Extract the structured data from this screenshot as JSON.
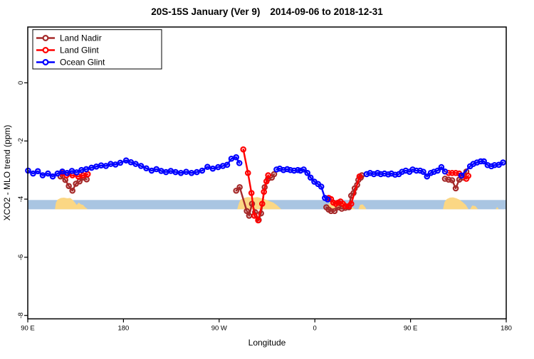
{
  "page": {
    "background": "#ffffff"
  },
  "chart_data": {
    "type": "line",
    "title": "20S-15S January (Ver 9)   2014-09-06 to 2018-12-31",
    "title_parts": [
      "20S-15S January (Ver 9)",
      "2014-09-06 to 2018-12-31"
    ],
    "xlabel": "Longitude",
    "ylabel": "XCO2 - MLO trend (ppm)",
    "marker": "open-circle",
    "x_axis": {
      "range_wrapped_deg": [
        90,
        540
      ],
      "ticks": [
        {
          "deg": 90,
          "label": "90 E"
        },
        {
          "deg": 180,
          "label": "180"
        },
        {
          "deg": 270,
          "label": "90 W"
        },
        {
          "deg": 360,
          "label": "0"
        },
        {
          "deg": 450,
          "label": "90 E"
        },
        {
          "deg": 540,
          "label": "180"
        }
      ]
    },
    "y_axis": {
      "range": [
        -8.1,
        1.9
      ],
      "ticks": [
        {
          "value": 0,
          "label": "0"
        },
        {
          "value": -2,
          "label": "-2"
        },
        {
          "value": -4,
          "label": "-4"
        },
        {
          "value": -6,
          "label": "-6"
        },
        {
          "value": -8,
          "label": "-8"
        }
      ]
    },
    "reference_band": {
      "top": -4.03,
      "bottom": -4.35,
      "color": "#a9c5e2"
    },
    "terrain": {
      "color": "#fbd784",
      "regions": [
        {
          "name": "australia",
          "points": [
            [
              115.5,
              -4.35
            ],
            [
              116.5,
              -4.12
            ],
            [
              118,
              -4.02
            ],
            [
              121,
              -3.96
            ],
            [
              124,
              -3.95
            ],
            [
              127,
              -3.97
            ],
            [
              130,
              -3.96
            ],
            [
              132,
              -4.02
            ],
            [
              134,
              -4.1
            ],
            [
              136,
              -4.2
            ],
            [
              138,
              -4.12
            ],
            [
              140,
              -4.18
            ],
            [
              142,
              -4.2
            ],
            [
              144,
              -4.28
            ],
            [
              146.5,
              -4.35
            ]
          ]
        },
        {
          "name": "south-america",
          "points": [
            [
              287,
              -4.35
            ],
            [
              288.5,
              -4.15
            ],
            [
              290,
              -4.02
            ],
            [
              293,
              -3.96
            ],
            [
              297,
              -3.93
            ],
            [
              302,
              -3.95
            ],
            [
              306,
              -3.93
            ],
            [
              310,
              -3.97
            ],
            [
              314,
              -4.02
            ],
            [
              318,
              -4.08
            ],
            [
              321,
              -4.12
            ],
            [
              324,
              -4.2
            ],
            [
              327,
              -4.3
            ],
            [
              328.5,
              -4.35
            ]
          ]
        },
        {
          "name": "africa",
          "points": [
            [
              370,
              -4.35
            ],
            [
              372,
              -4.2
            ],
            [
              375,
              -4.1
            ],
            [
              379,
              -4.06
            ],
            [
              383,
              -4.06
            ],
            [
              387,
              -4.1
            ],
            [
              390,
              -4.15
            ],
            [
              393,
              -4.22
            ],
            [
              396,
              -4.3
            ],
            [
              398,
              -4.35
            ]
          ]
        },
        {
          "name": "africa-east",
          "points": [
            [
              401,
              -4.35
            ],
            [
              402.5,
              -4.2
            ],
            [
              405,
              -4.18
            ],
            [
              407,
              -4.26
            ],
            [
              408.5,
              -4.35
            ]
          ]
        },
        {
          "name": "australia-repeat",
          "points": [
            [
              480.5,
              -4.35
            ],
            [
              482,
              -4.1
            ],
            [
              484,
              -4.0
            ],
            [
              487,
              -3.95
            ],
            [
              490,
              -3.94
            ],
            [
              493,
              -3.97
            ],
            [
              496,
              -4.02
            ],
            [
              499,
              -4.1
            ],
            [
              502,
              -4.2
            ],
            [
              504.5,
              -4.35
            ]
          ]
        },
        {
          "name": "islands-east",
          "points": [
            [
              506,
              -4.35
            ],
            [
              508,
              -4.22
            ],
            [
              511,
              -4.24
            ],
            [
              513.5,
              -4.35
            ]
          ]
        },
        {
          "name": "island-speck",
          "points": [
            [
              530,
              -4.35
            ],
            [
              531.5,
              -4.27
            ],
            [
              533,
              -4.35
            ]
          ]
        }
      ]
    },
    "legend": {
      "items": [
        {
          "label": "Land Nadir",
          "color": "#a52a2a"
        },
        {
          "label": "Land Glint",
          "color": "#ff0000"
        },
        {
          "label": "Ocean Glint",
          "color": "#0000ff"
        }
      ]
    },
    "series": [
      {
        "name": "Land Nadir",
        "key": "land-nadir",
        "color": "#a52a2a",
        "segments": [
          [
            [
              120.8,
              -3.22
            ],
            [
              125.3,
              -3.34
            ],
            [
              128.6,
              -3.55
            ],
            [
              132,
              -3.71
            ],
            [
              135.3,
              -3.47
            ],
            [
              138.7,
              -3.39
            ],
            [
              142,
              -3.26
            ],
            [
              145.4,
              -3.32
            ]
          ],
          [
            [
              286,
              -3.71
            ],
            [
              289.3,
              -3.59
            ],
            [
              296,
              -4.41
            ],
            [
              298.2,
              -4.57
            ],
            [
              300.9,
              -4.16
            ],
            [
              303.8,
              -4.45
            ],
            [
              307.2,
              -4.72
            ],
            [
              309.4,
              -4.49
            ],
            [
              312.8,
              -3.59
            ],
            [
              316,
              -3.3
            ],
            [
              319.5,
              -3.26
            ],
            [
              321.7,
              -3.14
            ]
          ],
          [
            [
              370.8,
              -4.28
            ],
            [
              373,
              -4.36
            ],
            [
              375.2,
              -4.41
            ],
            [
              378.6,
              -4.41
            ],
            [
              381.9,
              -4.28
            ],
            [
              385.3,
              -4.33
            ],
            [
              388.6,
              -4.3
            ],
            [
              392,
              -4.28
            ],
            [
              394.2,
              -3.88
            ],
            [
              396.4,
              -3.79
            ],
            [
              397.5,
              -3.63
            ],
            [
              399.8,
              -3.51
            ],
            [
              400.9,
              -3.34
            ],
            [
              403.2,
              -3.26
            ],
            [
              404.2,
              -3.18
            ]
          ],
          [
            [
              482.4,
              -3.3
            ],
            [
              485.8,
              -3.33
            ],
            [
              489.1,
              -3.35
            ],
            [
              492.5,
              -3.63
            ],
            [
              495.8,
              -3.33
            ],
            [
              499.2,
              -3.26
            ],
            [
              502.5,
              -3.05
            ]
          ]
        ]
      },
      {
        "name": "Land Glint",
        "key": "land-glint",
        "color": "#ff0000",
        "segments": [
          [
            [
              121.9,
              -3.1
            ],
            [
              126.4,
              -3.18
            ],
            [
              132,
              -3.18
            ],
            [
              137.5,
              -3.22
            ],
            [
              142,
              -3.18
            ],
            [
              146.4,
              -3.14
            ]
          ],
          [
            [
              292.7,
              -2.29
            ],
            [
              297.1,
              -3.1
            ],
            [
              300.4,
              -3.79
            ],
            [
              303.1,
              -4.57
            ],
            [
              306.7,
              -4.73
            ],
            [
              310.5,
              -4.16
            ],
            [
              312.1,
              -3.75
            ],
            [
              314.5,
              -3.39
            ],
            [
              316.1,
              -3.18
            ]
          ],
          [
            [
              373,
              -3.96
            ],
            [
              375.2,
              -4.0
            ],
            [
              377.4,
              -4.12
            ],
            [
              379.7,
              -4.16
            ],
            [
              381.9,
              -4.12
            ],
            [
              384.1,
              -4.08
            ],
            [
              386.4,
              -4.16
            ],
            [
              388.6,
              -4.24
            ],
            [
              392,
              -4.24
            ],
            [
              394.2,
              -4.16
            ],
            [
              402,
              -3.22
            ]
          ],
          [
            [
              485.8,
              -3.1
            ],
            [
              489.1,
              -3.1
            ],
            [
              492.5,
              -3.1
            ],
            [
              495.8,
              -3.12
            ],
            [
              502.5,
              -3.3
            ],
            [
              504.3,
              -3.2
            ]
          ]
        ]
      },
      {
        "name": "Ocean Glint",
        "key": "ocean-glint",
        "color": "#0000ff",
        "segments": [
          [
            [
              90.3,
              -3.02
            ],
            [
              95,
              -3.12
            ],
            [
              99.5,
              -3.04
            ],
            [
              104,
              -3.18
            ],
            [
              109,
              -3.12
            ],
            [
              113.5,
              -3.22
            ],
            [
              118,
              -3.12
            ],
            [
              122.5,
              -3.05
            ],
            [
              127,
              -3.1
            ],
            [
              131.5,
              -3.03
            ],
            [
              136,
              -3.08
            ],
            [
              140.5,
              -3.0
            ],
            [
              145,
              -2.97
            ],
            [
              150,
              -2.92
            ],
            [
              154.5,
              -2.88
            ],
            [
              159,
              -2.84
            ],
            [
              163.5,
              -2.86
            ],
            [
              168,
              -2.79
            ],
            [
              172.5,
              -2.81
            ],
            [
              177,
              -2.75
            ],
            [
              182.5,
              -2.67
            ],
            [
              187,
              -2.73
            ],
            [
              191.5,
              -2.79
            ],
            [
              196.5,
              -2.86
            ],
            [
              201.5,
              -2.94
            ],
            [
              206.5,
              -3.02
            ],
            [
              211,
              -2.97
            ],
            [
              215.5,
              -3.03
            ],
            [
              220,
              -3.07
            ],
            [
              224.5,
              -3.03
            ],
            [
              229,
              -3.07
            ],
            [
              234,
              -3.1
            ],
            [
              239,
              -3.06
            ],
            [
              244,
              -3.1
            ],
            [
              249,
              -3.07
            ],
            [
              254,
              -3.02
            ],
            [
              259,
              -2.89
            ],
            [
              264,
              -2.95
            ],
            [
              269,
              -2.9
            ],
            [
              273.5,
              -2.86
            ],
            [
              277.5,
              -2.82
            ],
            [
              281.5,
              -2.61
            ],
            [
              286,
              -2.56
            ],
            [
              289,
              -2.76
            ]
          ],
          [
            [
              324,
              -2.98
            ],
            [
              327,
              -2.95
            ],
            [
              330.5,
              -3.0
            ],
            [
              334,
              -2.97
            ],
            [
              337,
              -3.0
            ],
            [
              340.5,
              -3.02
            ],
            [
              344,
              -3.0
            ],
            [
              346.5,
              -3.02
            ],
            [
              349.5,
              -2.98
            ],
            [
              353,
              -3.1
            ],
            [
              356,
              -3.26
            ],
            [
              359.5,
              -3.4
            ],
            [
              363,
              -3.48
            ],
            [
              366,
              -3.57
            ],
            [
              369.5,
              -3.96
            ],
            [
              372,
              -4.01
            ]
          ],
          [
            [
              408.7,
              -3.14
            ],
            [
              412,
              -3.1
            ],
            [
              415.5,
              -3.14
            ],
            [
              419,
              -3.1
            ],
            [
              422,
              -3.14
            ],
            [
              425.5,
              -3.12
            ],
            [
              429,
              -3.15
            ],
            [
              432,
              -3.12
            ],
            [
              435.5,
              -3.16
            ],
            [
              439,
              -3.14
            ],
            [
              442,
              -3.06
            ],
            [
              445.5,
              -3.02
            ],
            [
              449,
              -3.06
            ],
            [
              452,
              -2.98
            ],
            [
              455.5,
              -3.02
            ],
            [
              459,
              -3.02
            ],
            [
              462,
              -3.06
            ],
            [
              465.5,
              -3.22
            ],
            [
              469,
              -3.1
            ],
            [
              472,
              -3.06
            ],
            [
              475.5,
              -3.02
            ],
            [
              479,
              -2.9
            ],
            [
              482.4,
              -3.05
            ]
          ],
          [
            [
              497.8,
              -3.19
            ],
            [
              506,
              -2.87
            ],
            [
              509,
              -2.79
            ],
            [
              512.5,
              -2.74
            ],
            [
              516,
              -2.7
            ],
            [
              519,
              -2.7
            ],
            [
              522.5,
              -2.83
            ],
            [
              526,
              -2.87
            ],
            [
              529,
              -2.83
            ],
            [
              533,
              -2.82
            ],
            [
              537,
              -2.74
            ]
          ]
        ]
      }
    ]
  }
}
